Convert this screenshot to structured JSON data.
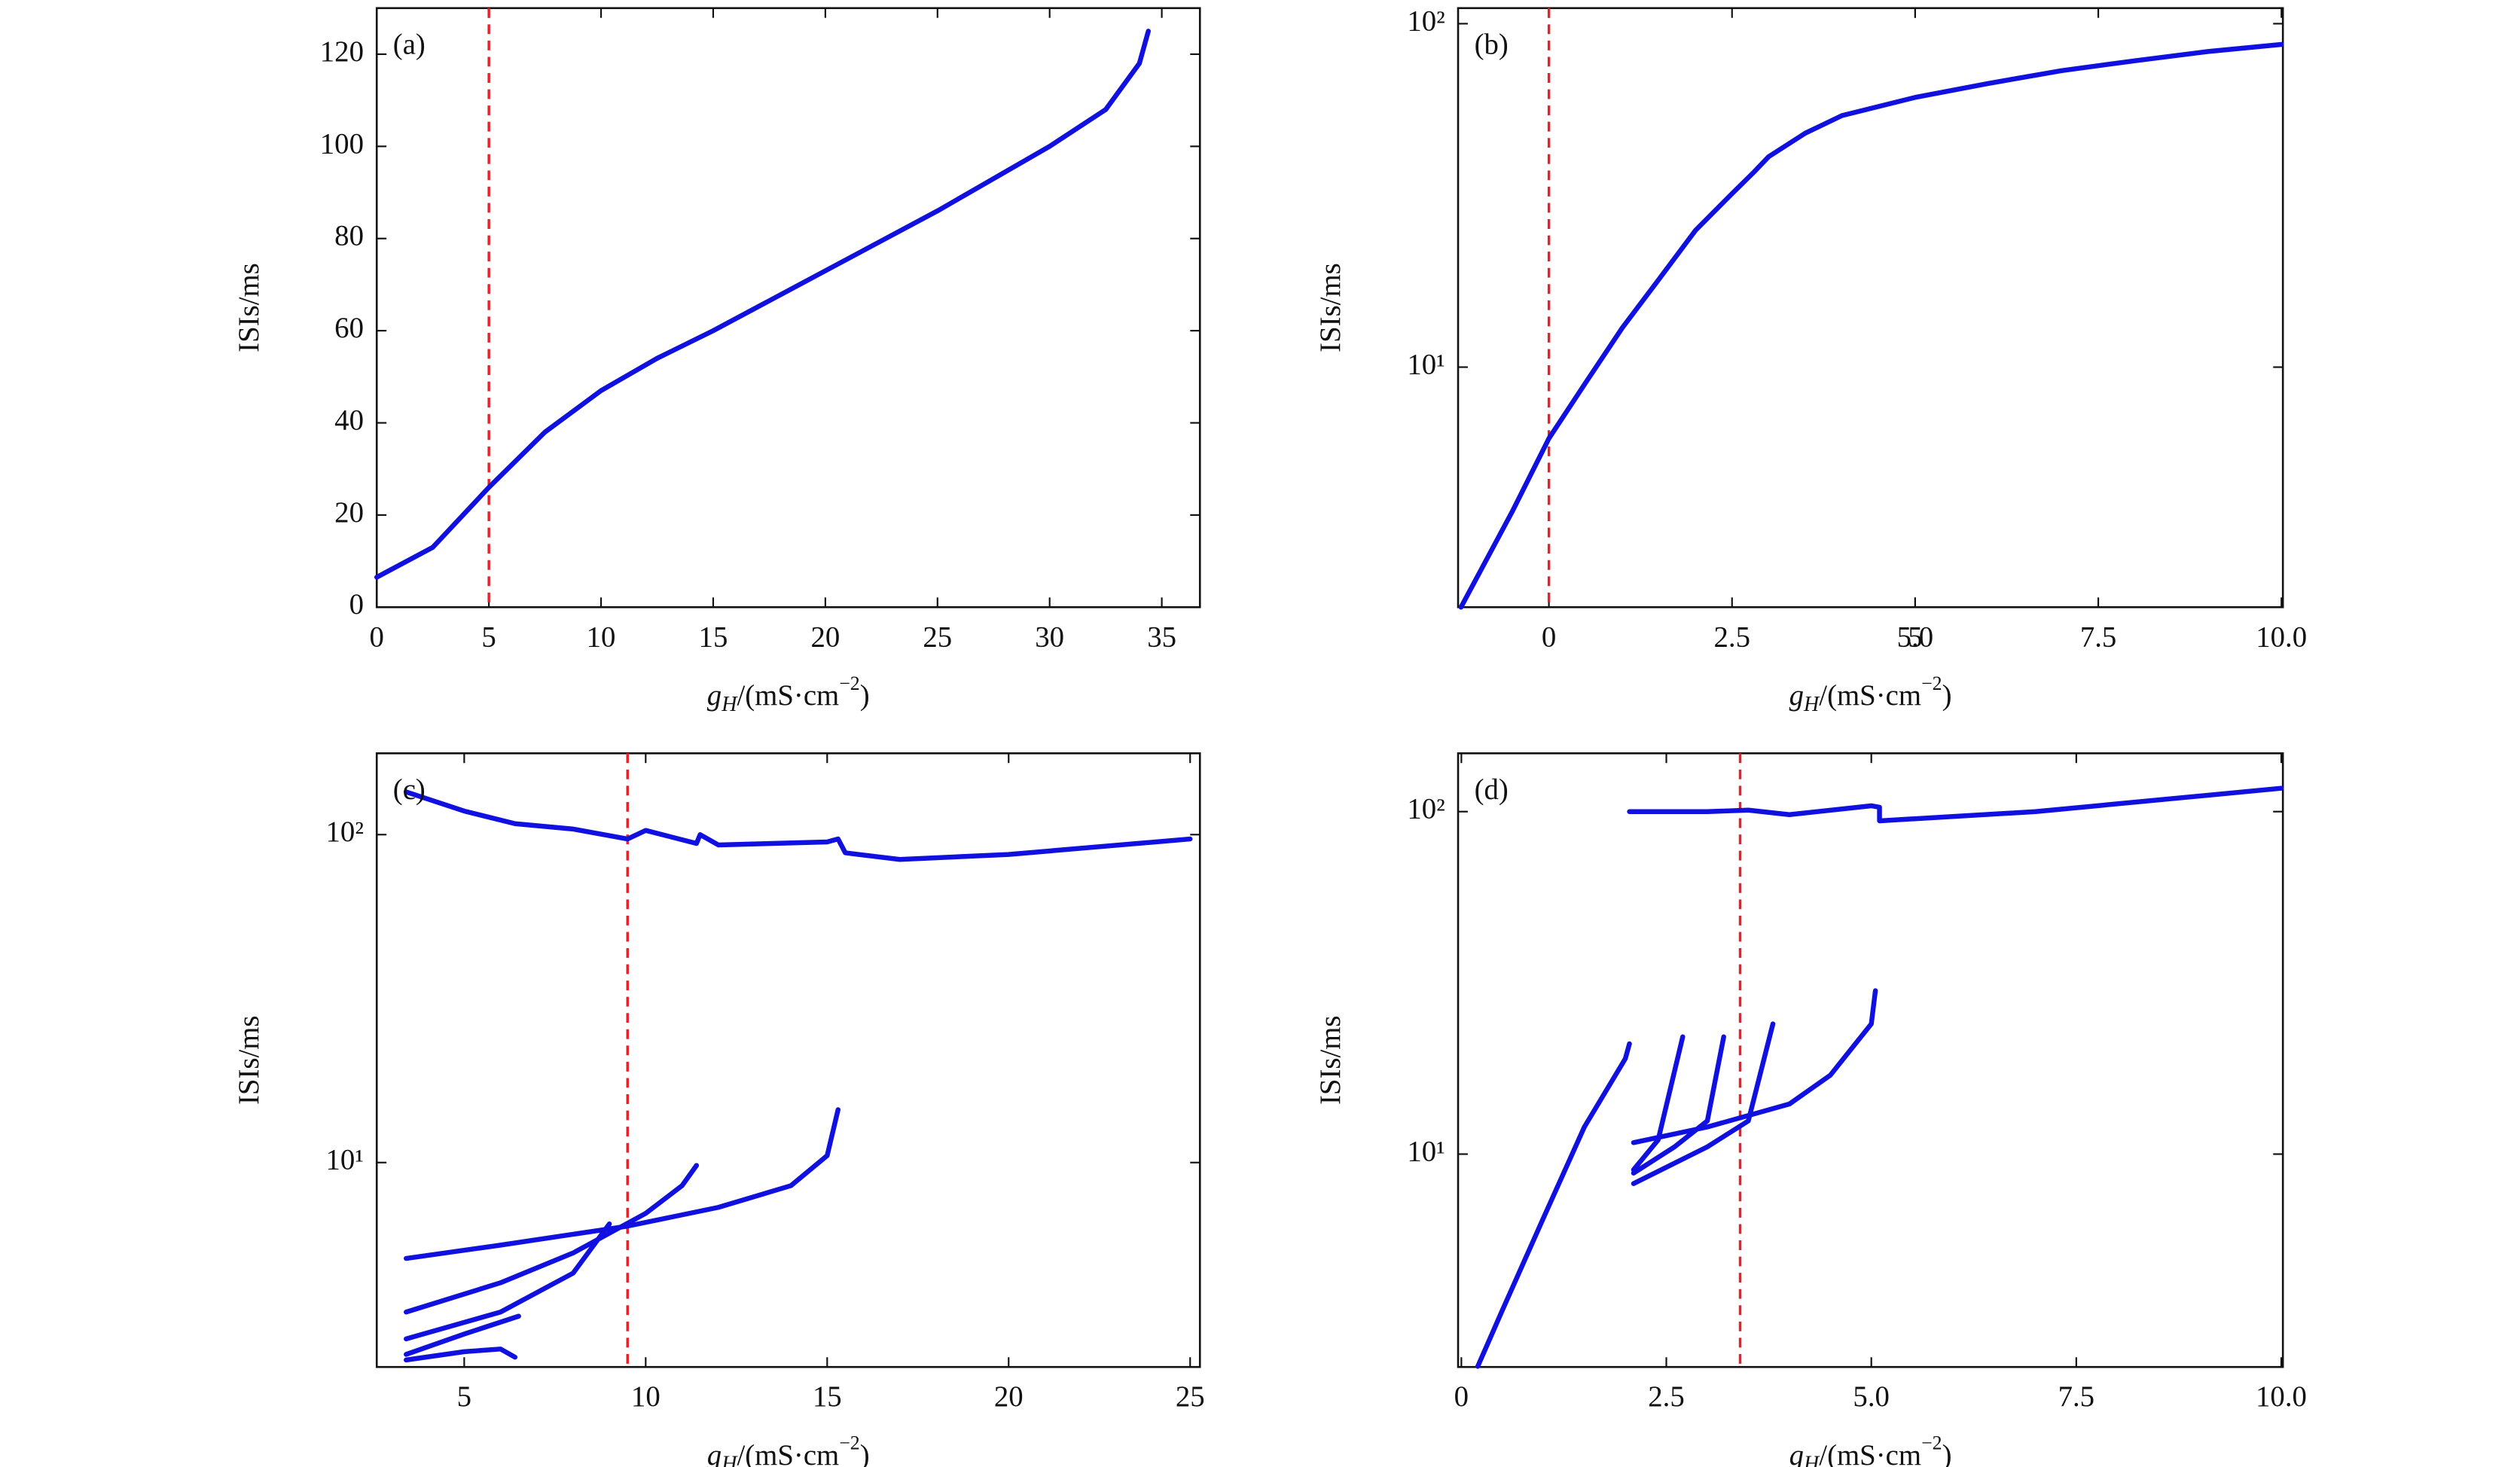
{
  "chart_data": [
    {
      "type": "line",
      "panel_label": "(a)",
      "ylabel": "ISIs/ms",
      "xlabel": [
        "g",
        "H",
        "/(mS·cm",
        "−2",
        ")"
      ],
      "xlim": [
        0,
        36.7
      ],
      "xticks": [
        0,
        5,
        10,
        15,
        20,
        25,
        30,
        35
      ],
      "ylim": [
        0,
        130
      ],
      "yticks": [
        0,
        20,
        40,
        60,
        80,
        100,
        120
      ],
      "log_y": false,
      "vline": {
        "x": 5,
        "color": "#e8202a"
      },
      "series": [
        {
          "color": "#1010e0",
          "x": [
            0,
            2.5,
            5,
            7.5,
            10,
            12.5,
            15,
            20,
            25,
            30,
            32.5,
            34,
            34.4
          ],
          "values": [
            6.5,
            13,
            26,
            38,
            47,
            54,
            60,
            73,
            86,
            100,
            108,
            118,
            125
          ]
        }
      ]
    },
    {
      "type": "line",
      "panel_label": "(b)",
      "ylabel": "ISIs/ms",
      "xlabel": [
        "g",
        "H",
        "/(mS·cm",
        "−2",
        ")"
      ],
      "xlim": [
        -1.24,
        10.02
      ],
      "xticks": [
        0,
        2.5,
        5.0,
        {
          "value": 5,
          "label": "5.0"
        },
        7.5,
        {
          "value": 10,
          "label": "10.0"
        }
      ],
      "ylim": [
        2,
        111
      ],
      "yticks": [
        {
          "value": 10,
          "label": "10¹"
        },
        {
          "value": 100,
          "label": "10²"
        }
      ],
      "log_y": true,
      "vline": {
        "x": 0,
        "color": "#e8202a"
      },
      "series": [
        {
          "color": "#1010e0",
          "x": [
            -1.2,
            -0.5,
            0,
            0.5,
            1,
            1.5,
            2,
            2.5,
            2.8,
            3,
            3.5,
            4,
            5,
            6,
            7,
            8,
            9,
            10
          ],
          "values": [
            2,
            3.8,
            6.2,
            9,
            13,
            18,
            25,
            32,
            37,
            41,
            48,
            54,
            61,
            67,
            73,
            78,
            83,
            87
          ]
        }
      ]
    },
    {
      "type": "line",
      "panel_label": "(c)",
      "ylabel": "ISIs/ms",
      "xlabel": [
        "g",
        "H",
        "/(mS·cm",
        "−2",
        ")"
      ],
      "xlim": [
        2.59,
        25.27
      ],
      "xticks": [
        5,
        10,
        15,
        20,
        25
      ],
      "ylim": [
        2.38,
        177
      ],
      "yticks": [
        {
          "value": 10,
          "label": "10¹"
        },
        {
          "value": 100,
          "label": "10²"
        }
      ],
      "log_y": true,
      "vline": {
        "x": 9.5,
        "color": "#e8202a"
      },
      "series": [
        {
          "color": "#1010e0",
          "x": [
            3.4,
            5,
            6.4,
            8,
            9.5,
            10,
            11.4,
            11.5,
            12,
            15,
            15.3,
            15.5,
            17,
            20,
            25
          ],
          "values": [
            135,
            118,
            108,
            104,
            97,
            103,
            94,
            100,
            93,
            95,
            97,
            88,
            84,
            87,
            97
          ]
        },
        {
          "color": "#1010e0",
          "x": [
            3.4,
            6,
            9.5,
            12,
            14,
            15,
            15.3
          ],
          "values": [
            5.1,
            5.6,
            6.4,
            7.3,
            8.5,
            10.5,
            14.5
          ]
        },
        {
          "color": "#1010e0",
          "x": [
            3.4,
            6,
            8,
            10,
            11,
            11.4
          ],
          "values": [
            3.5,
            4.3,
            5.3,
            7,
            8.5,
            9.8
          ]
        },
        {
          "color": "#1010e0",
          "x": [
            3.4,
            6,
            8,
            9
          ],
          "values": [
            2.9,
            3.5,
            4.6,
            6.5
          ]
        },
        {
          "color": "#1010e0",
          "x": [
            3.4,
            5,
            6.5
          ],
          "values": [
            2.6,
            3.0,
            3.4
          ]
        },
        {
          "color": "#1010e0",
          "x": [
            3.4,
            5,
            6,
            6.4
          ],
          "values": [
            2.5,
            2.65,
            2.7,
            2.55
          ]
        }
      ]
    },
    {
      "type": "line",
      "panel_label": "(d)",
      "ylabel": "ISIs/ms",
      "xlabel": [
        "g",
        "H",
        "/(mS·cm",
        "−2",
        ")"
      ],
      "xlim": [
        -0.04,
        10.02
      ],
      "xticks": [
        0,
        2.5,
        {
          "value": 5,
          "label": "5.0"
        },
        7.5,
        {
          "value": 10,
          "label": "10.0"
        }
      ],
      "ylim": [
        2.39,
        148
      ],
      "yticks": [
        {
          "value": 10,
          "label": "10¹"
        },
        {
          "value": 100,
          "label": "10²"
        }
      ],
      "log_y": true,
      "vline": {
        "x": 3.4,
        "color": "#e8202a"
      },
      "series": [
        {
          "color": "#1010e0",
          "x": [
            2.05,
            3,
            3.5,
            4,
            5,
            5.1,
            5.1,
            7,
            10
          ],
          "values": [
            100,
            100,
            101,
            98,
            104,
            103,
            94,
            100,
            117
          ]
        },
        {
          "color": "#1010e0",
          "x": [
            0.2,
            0.5,
            1,
            1.5,
            2,
            2.05
          ],
          "values": [
            2.4,
            3.5,
            6.5,
            12,
            19,
            21
          ]
        },
        {
          "color": "#1010e0",
          "x": [
            2.1,
            3,
            4,
            4.5,
            5,
            5.05
          ],
          "values": [
            10.8,
            12,
            14,
            17,
            24,
            30
          ]
        },
        {
          "color": "#1010e0",
          "x": [
            2.1,
            3,
            3.5,
            3.8
          ],
          "values": [
            8.2,
            10.5,
            12.5,
            24
          ]
        },
        {
          "color": "#1010e0",
          "x": [
            2.1,
            2.6,
            3,
            3.2
          ],
          "values": [
            8.8,
            10.5,
            12.5,
            22
          ]
        },
        {
          "color": "#1010e0",
          "x": [
            2.1,
            2.4,
            2.7
          ],
          "values": [
            9,
            11,
            22
          ]
        }
      ]
    }
  ]
}
